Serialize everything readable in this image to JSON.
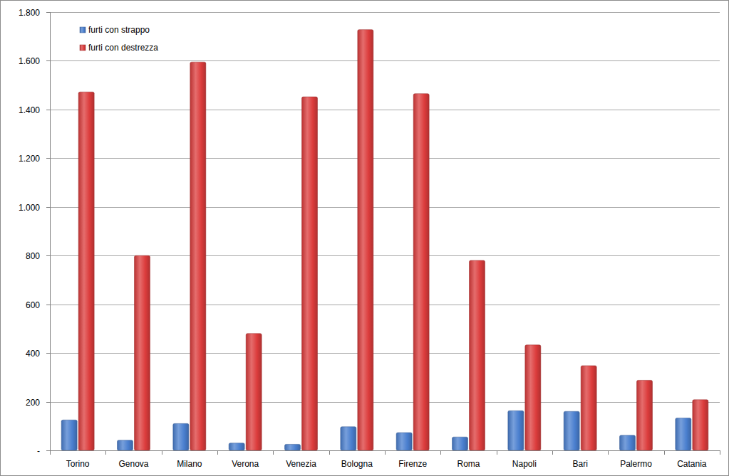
{
  "chart_data": {
    "type": "bar",
    "categories": [
      "Torino",
      "Genova",
      "Milano",
      "Verona",
      "Venezia",
      "Bologna",
      "Firenze",
      "Roma",
      "Napoli",
      "Bari",
      "Palermo",
      "Catania"
    ],
    "series": [
      {
        "name": "furti con strappo",
        "color": "#4a7fcf",
        "values": [
          125,
          42,
          110,
          30,
          25,
          97,
          73,
          55,
          163,
          160,
          62,
          133
        ]
      },
      {
        "name": "furti con destrezza",
        "color": "#dc3c3c",
        "values": [
          1472,
          800,
          1595,
          480,
          1452,
          1728,
          1465,
          780,
          433,
          348,
          288,
          208
        ]
      }
    ],
    "ylim": [
      0,
      1800
    ],
    "yticks": [
      {
        "value": 0,
        "label": "-"
      },
      200,
      400,
      600,
      800,
      {
        "value": 1000,
        "label": "1.000"
      },
      {
        "value": 1200,
        "label": "1.200"
      },
      {
        "value": 1400,
        "label": "1.400"
      },
      {
        "value": 1600,
        "label": "1.600"
      },
      {
        "value": 1800,
        "label": "1.800"
      }
    ],
    "grid": true,
    "legend": "top-left"
  }
}
